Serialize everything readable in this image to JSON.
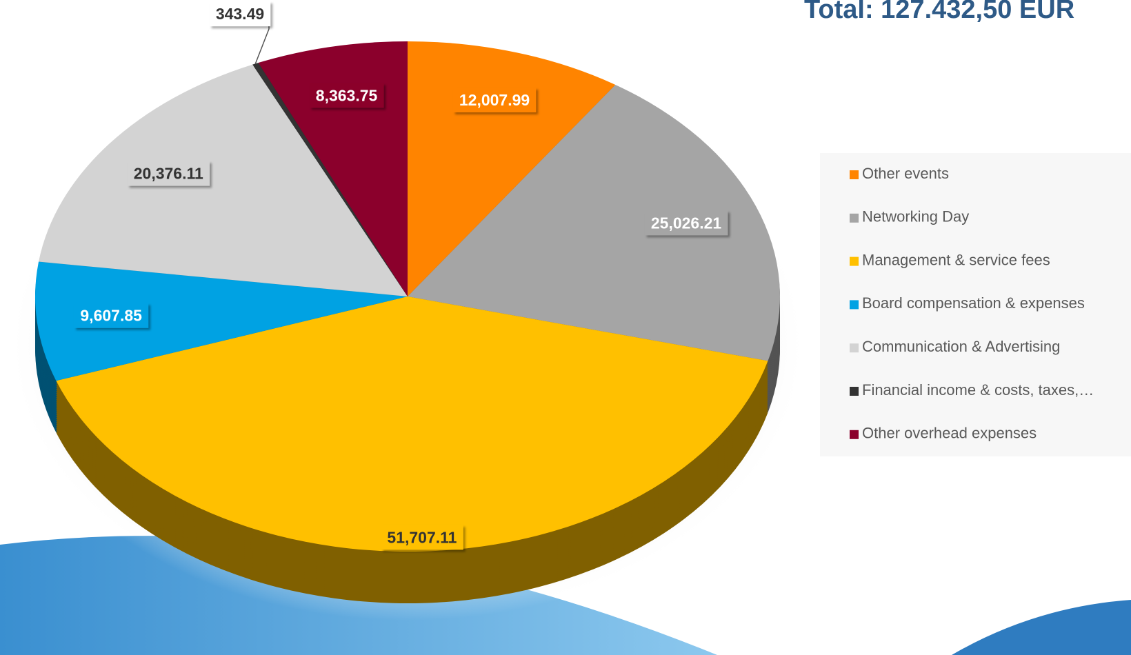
{
  "chart_data": {
    "type": "pie",
    "title": "Total: 127.432,50 EUR",
    "categories": [
      "Other events",
      "Networking Day",
      "Management & service fees",
      "Board compensation & expenses",
      "Communication & Advertising",
      "Financial income & costs, taxes,…",
      "Other overhead expenses"
    ],
    "values": [
      12007.99,
      25026.21,
      51707.11,
      9607.85,
      20376.11,
      343.49,
      8363.75
    ],
    "value_labels": [
      "12,007.99",
      "25,026.21",
      "51,707.11",
      "9,607.85",
      "20,376.11",
      "343.49",
      "8,363.75"
    ],
    "colors": [
      "#ff8400",
      "#a5a5a5",
      "#ffc000",
      "#00a2e3",
      "#d3d3d3",
      "#333333",
      "#8b002c"
    ],
    "legend": "right"
  }
}
